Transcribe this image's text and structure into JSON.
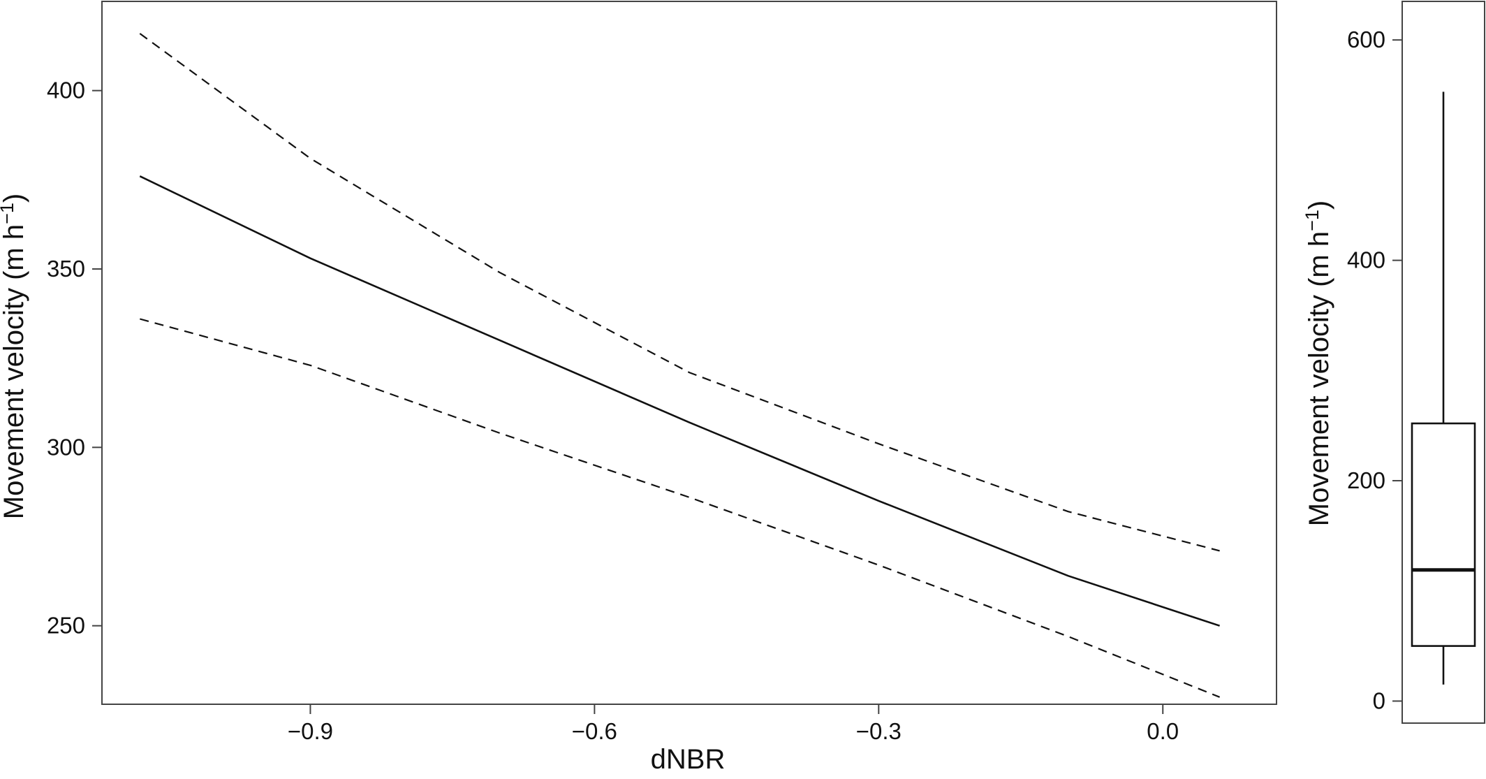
{
  "chart_data": [
    {
      "type": "line",
      "xlabel": "dNBR",
      "ylabel": "Movement velocity (m h",
      "ylabel_sup": "−1",
      "ylabel_end": ")",
      "xlim": [
        -1.12,
        0.12
      ],
      "ylim": [
        228,
        425
      ],
      "xticks": [
        -0.9,
        -0.6,
        -0.3,
        0.0
      ],
      "xtick_labels": [
        "−0.9",
        "−0.6",
        "−0.3",
        "0.0"
      ],
      "yticks": [
        250,
        300,
        350,
        400
      ],
      "ytick_labels": [
        "250",
        "300",
        "350",
        "400"
      ],
      "grid": false,
      "series": [
        {
          "style": "solid",
          "x": [
            -1.08,
            -0.9,
            -0.7,
            -0.5,
            -0.3,
            -0.1,
            0.06
          ],
          "y": [
            376,
            353,
            330,
            307,
            285,
            264,
            250
          ]
        },
        {
          "style": "dashed",
          "x": [
            -1.08,
            -0.9,
            -0.7,
            -0.5,
            -0.3,
            -0.1,
            0.06
          ],
          "y": [
            416,
            381,
            349,
            321,
            301,
            282,
            271
          ]
        },
        {
          "style": "dashed",
          "x": [
            -1.08,
            -0.9,
            -0.7,
            -0.5,
            -0.3,
            -0.1,
            0.06
          ],
          "y": [
            336,
            323,
            304,
            286,
            267,
            247,
            230
          ]
        }
      ]
    },
    {
      "type": "box",
      "ylabel": "Movement velocity (m h",
      "ylabel_sup": "−1",
      "ylabel_end": ")",
      "ylim": [
        -20,
        635
      ],
      "yticks": [
        0,
        200,
        400,
        600
      ],
      "ytick_labels": [
        "0",
        "200",
        "400",
        "600"
      ],
      "whisker_low": 15,
      "q1": 50,
      "median": 119,
      "q3": 252,
      "whisker_high": 553
    }
  ]
}
